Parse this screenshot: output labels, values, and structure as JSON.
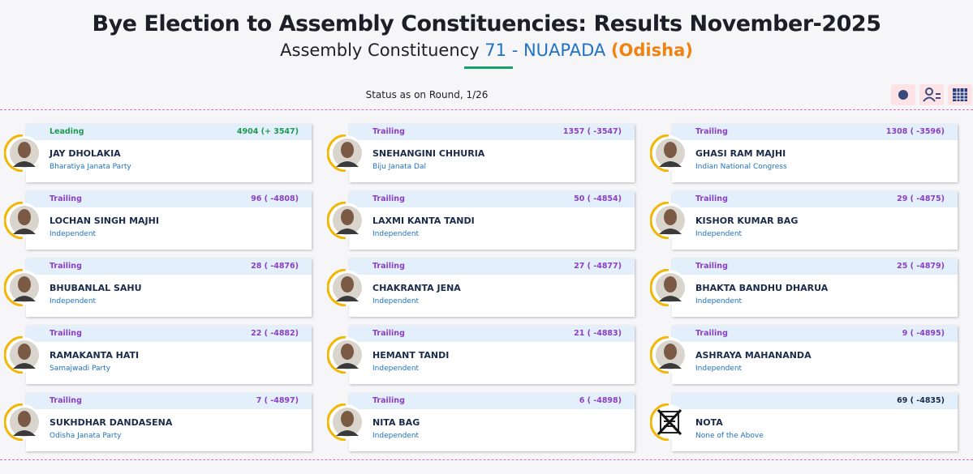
{
  "header": {
    "title": "Bye Election to Assembly Constituencies: Results November-2025",
    "subtitle": {
      "prefix": "Assembly Constituency",
      "number": "71 - NUAPADA",
      "state": "(Odisha)"
    },
    "status": "Status as on Round, 1/26"
  },
  "candidates": [
    {
      "status": "Leading",
      "result": "4904 (+ 3547)",
      "name": "JAY DHOLAKIA",
      "party": "Bharatiya Janata Party",
      "color": "#1e9a50"
    },
    {
      "status": "Trailing",
      "result": "1357 ( -3547)",
      "name": "SNEHANGINI CHHURIA",
      "party": "Biju Janata Dal",
      "color": "#8b3fc2"
    },
    {
      "status": "Trailing",
      "result": "1308 ( -3596)",
      "name": "GHASI RAM MAJHI",
      "party": "Indian National Congress",
      "color": "#8b3fc2"
    },
    {
      "status": "Trailing",
      "result": "96 ( -4808)",
      "name": "LOCHAN SINGH MAJHI",
      "party": "Independent",
      "color": "#8b3fc2"
    },
    {
      "status": "Trailing",
      "result": "50 ( -4854)",
      "name": "LAXMI KANTA TANDI",
      "party": "Independent",
      "color": "#8b3fc2"
    },
    {
      "status": "Trailing",
      "result": "29 ( -4875)",
      "name": "KISHOR KUMAR BAG",
      "party": "Independent",
      "color": "#8b3fc2"
    },
    {
      "status": "Trailing",
      "result": "28 ( -4876)",
      "name": "BHUBANLAL SAHU",
      "party": "Independent",
      "color": "#8b3fc2"
    },
    {
      "status": "Trailing",
      "result": "27 ( -4877)",
      "name": "CHAKRANTA JENA",
      "party": "Independent",
      "color": "#8b3fc2"
    },
    {
      "status": "Trailing",
      "result": "25 ( -4879)",
      "name": "BHAKTA BANDHU DHARUA",
      "party": "Independent",
      "color": "#8b3fc2"
    },
    {
      "status": "Trailing",
      "result": "22 ( -4882)",
      "name": "RAMAKANTA HATI",
      "party": "Samajwadi Party",
      "color": "#8b3fc2"
    },
    {
      "status": "Trailing",
      "result": "21 ( -4883)",
      "name": "HEMANT TANDI",
      "party": "Independent",
      "color": "#8b3fc2"
    },
    {
      "status": "Trailing",
      "result": "9 ( -4895)",
      "name": "ASHRAYA MAHANANDA",
      "party": "Independent",
      "color": "#8b3fc2"
    },
    {
      "status": "Trailing",
      "result": "7 ( -4897)",
      "name": "SUKHDHAR DANDASENA",
      "party": "Odisha Janata Party",
      "color": "#8b3fc2"
    },
    {
      "status": "Trailing",
      "result": "6 ( -4898)",
      "name": "NITA BAG",
      "party": "Independent",
      "color": "#8b3fc2"
    },
    {
      "result": "69 ( -4835)",
      "name": "NOTA",
      "party": "None of the Above",
      "color": "#1a2b4a"
    }
  ]
}
